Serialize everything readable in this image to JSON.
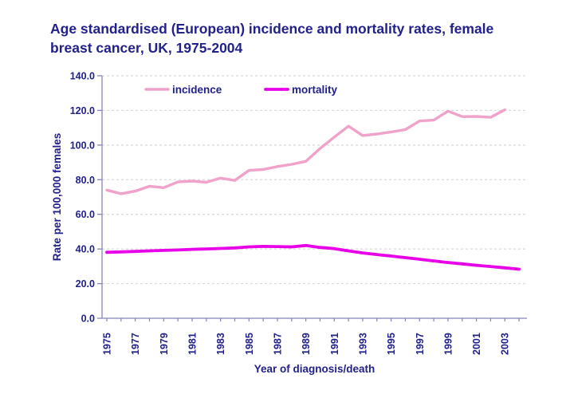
{
  "title": {
    "line1": "Age standardised (European) incidence and mortality rates, female",
    "line2": "breast cancer, UK, 1975-2004"
  },
  "colors": {
    "text_navy": "#22218b",
    "axis": "#8585b8",
    "gridline": "#d9d9d9",
    "incidence": "#f0a2ca",
    "mortality": "#e800e8"
  },
  "chart_data": {
    "type": "line",
    "title": "Age standardised (European) incidence and mortality rates, female breast cancer, UK, 1975-2004",
    "xlabel": "Year of diagnosis/death",
    "ylabel": "Rate per 100,000 females",
    "ylim": [
      0,
      140
    ],
    "ytick_step": 20,
    "ytick_labels": [
      "0.0",
      "20.0",
      "40.0",
      "60.0",
      "80.0",
      "100.0",
      "120.0",
      "140.0"
    ],
    "x": [
      1975,
      1976,
      1977,
      1978,
      1979,
      1980,
      1981,
      1982,
      1983,
      1984,
      1985,
      1986,
      1987,
      1988,
      1989,
      1990,
      1991,
      1992,
      1993,
      1994,
      1995,
      1996,
      1997,
      1998,
      1999,
      2000,
      2001,
      2002,
      2003,
      2004
    ],
    "xtick_labels": [
      "1975",
      "1977",
      "1979",
      "1981",
      "1983",
      "1985",
      "1987",
      "1989",
      "1991",
      "1993",
      "1995",
      "1997",
      "1999",
      "2001",
      "2003"
    ],
    "grid": "horizontal-dashed",
    "legend_position": "top-inside",
    "series": [
      {
        "name": "incidence",
        "color": "#f0a2ca",
        "values": [
          74.0,
          71.9,
          73.4,
          76.2,
          75.4,
          78.7,
          79.2,
          78.5,
          80.9,
          79.6,
          85.4,
          85.9,
          87.6,
          88.9,
          90.6,
          98.0,
          104.6,
          110.9,
          105.5,
          106.4,
          107.6,
          108.9,
          113.9,
          114.4,
          119.6,
          116.4,
          116.5,
          116.0,
          120.4,
          null
        ]
      },
      {
        "name": "mortality",
        "color": "#e800e8",
        "values": [
          38.1,
          38.3,
          38.6,
          38.9,
          39.2,
          39.4,
          39.8,
          40.0,
          40.3,
          40.6,
          41.2,
          41.5,
          41.4,
          41.2,
          42.0,
          40.9,
          40.2,
          38.9,
          37.7,
          36.8,
          35.9,
          35.0,
          34.1,
          33.1,
          32.2,
          31.4,
          30.6,
          29.9,
          29.1,
          28.3
        ]
      }
    ]
  }
}
